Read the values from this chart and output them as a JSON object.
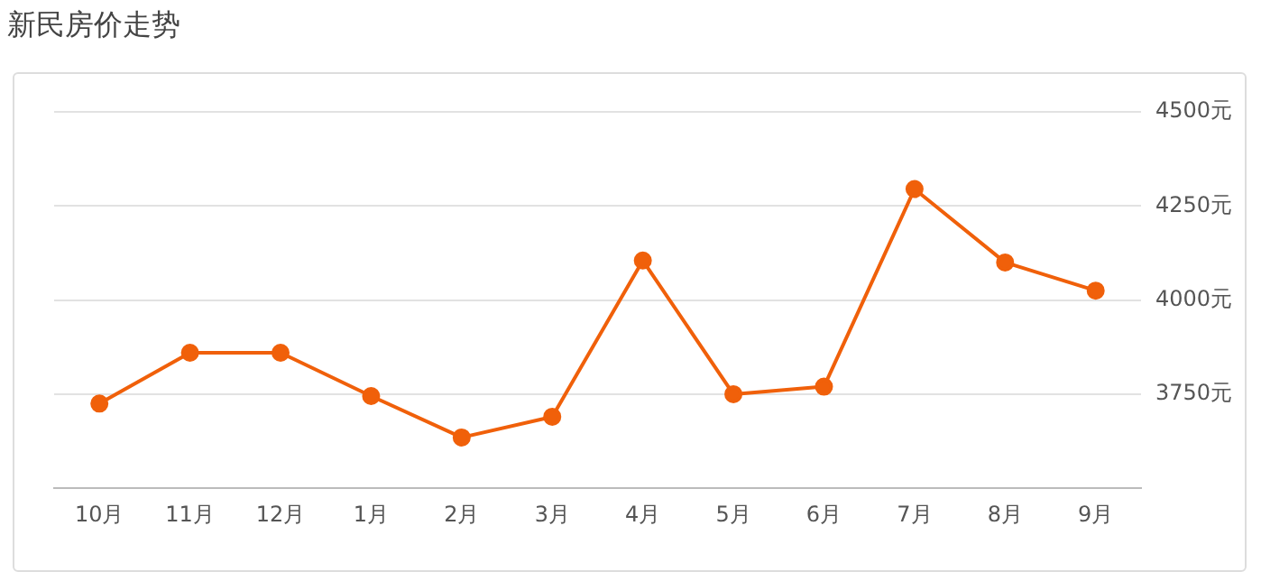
{
  "chart_data": {
    "type": "line",
    "title": "新民房价走势",
    "categories": [
      "10月",
      "11月",
      "12月",
      "1月",
      "2月",
      "3月",
      "4月",
      "5月",
      "6月",
      "7月",
      "8月",
      "9月"
    ],
    "values": [
      3725,
      3860,
      3860,
      3745,
      3635,
      3690,
      4105,
      3750,
      3770,
      4295,
      4100,
      4025
    ],
    "color": "#f0600a",
    "marker": "circle",
    "grid": "y",
    "legend": false,
    "ylim": [
      3500,
      4500
    ],
    "yticks": [
      {
        "value": 3750,
        "label": "3750元"
      },
      {
        "value": 4000,
        "label": "4000元"
      },
      {
        "value": 4250,
        "label": "4250元"
      },
      {
        "value": 4500,
        "label": "4500元"
      }
    ]
  }
}
